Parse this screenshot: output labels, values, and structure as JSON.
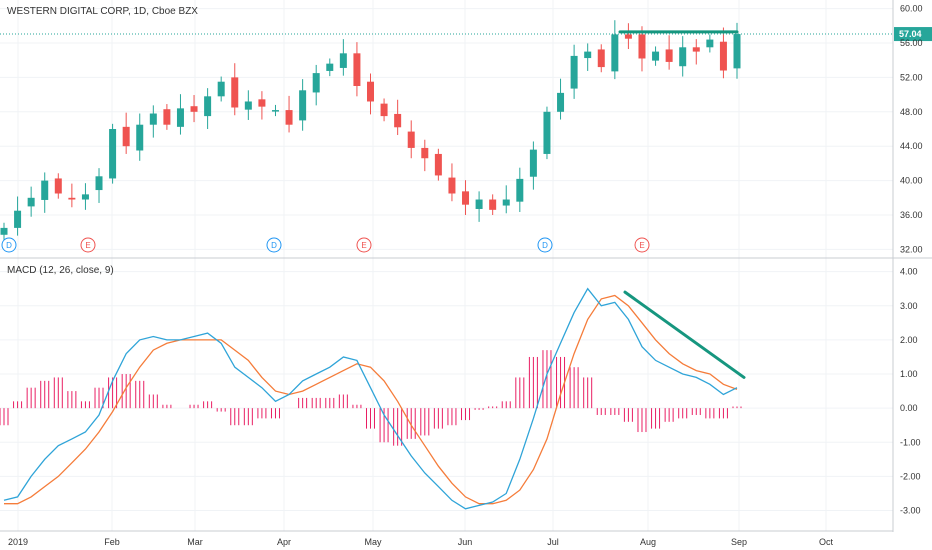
{
  "colors": {
    "up": "#26a69a",
    "down": "#ef5350",
    "macd_line": "#2fa4d8",
    "signal_line": "#f57c3a",
    "histogram": "#e91e63",
    "annotation": "#16967f",
    "grid": "#f0f3f6",
    "axis": "#c8ccd2",
    "dividend": "#2196f3",
    "earnings": "#ef5350"
  },
  "chart_data": [
    {
      "type": "candlestick",
      "title": "WESTERN DIGITAL CORP, 1D, Cboe BZX",
      "x_labels": [
        "2019",
        "Feb",
        "Mar",
        "Apr",
        "May",
        "Jun",
        "Jul",
        "Aug",
        "Sep",
        "Oct"
      ],
      "ylim": [
        31,
        61
      ],
      "y_ticks": [
        "32.00",
        "36.00",
        "40.00",
        "44.00",
        "48.00",
        "52.00",
        "56.00",
        "60.00"
      ],
      "last_price": "57.04",
      "last_price_value": 57.04,
      "events": [
        {
          "type": "dividend",
          "label": "D",
          "month": "Jan"
        },
        {
          "type": "earnings",
          "label": "E",
          "month": "Jan"
        },
        {
          "type": "dividend",
          "label": "D",
          "month": "Apr"
        },
        {
          "type": "earnings",
          "label": "E",
          "month": "Apr"
        },
        {
          "type": "dividend",
          "label": "D",
          "month": "Jul"
        },
        {
          "type": "earnings",
          "label": "E",
          "month": "Jul"
        }
      ],
      "annotation": {
        "type": "horizontal-resistance",
        "from": "late Jul",
        "to": "end Aug",
        "value": 57.3
      },
      "close_series": [
        34.5,
        36.5,
        38.0,
        40.0,
        38.5,
        37.8,
        38.4,
        40.5,
        46.0,
        44.0,
        46.5,
        47.8,
        46.5,
        48.4,
        48.0,
        49.8,
        51.5,
        48.5,
        49.2,
        48.6,
        48.2,
        46.5,
        50.5,
        52.5,
        53.6,
        54.8,
        51.0,
        49.2,
        47.5,
        46.2,
        43.8,
        42.6,
        40.6,
        38.5,
        37.2,
        37.8,
        36.6,
        37.8,
        40.2,
        43.6,
        48.0,
        50.2,
        54.5,
        55.0,
        53.2,
        57.0,
        56.5,
        54.2,
        55.0,
        53.8,
        55.5,
        55.0,
        56.4,
        52.8,
        57.04
      ]
    },
    {
      "type": "line",
      "title": "MACD (12, 26, close, 9)",
      "ylim": [
        -3.6,
        4.4
      ],
      "y_ticks": [
        "4.00",
        "3.00",
        "2.00",
        "1.00",
        "0.00",
        "-1.00",
        "-2.00",
        "-3.00"
      ],
      "series": [
        {
          "values": [
            -2.7,
            -2.6,
            -2.0,
            -1.5,
            -1.1,
            -0.9,
            -0.7,
            -0.2,
            0.8,
            1.6,
            2.0,
            2.1,
            2.0,
            2.0,
            2.1,
            2.2,
            1.9,
            1.2,
            0.9,
            0.6,
            0.2,
            0.4,
            0.8,
            1.0,
            1.2,
            1.5,
            1.4,
            0.6,
            -0.2,
            -0.8,
            -1.4,
            -1.9,
            -2.3,
            -2.7,
            -2.95,
            -2.85,
            -2.75,
            -2.5,
            -1.5,
            -0.3,
            1.0,
            1.9,
            2.8,
            3.5,
            3.0,
            3.1,
            2.6,
            1.8,
            1.4,
            1.2,
            1.0,
            0.9,
            0.7,
            0.4,
            0.6
          ]
        },
        {
          "values": [
            -2.8,
            -2.8,
            -2.6,
            -2.3,
            -2.0,
            -1.6,
            -1.2,
            -0.7,
            -0.1,
            0.6,
            1.2,
            1.7,
            1.9,
            2.0,
            2.0,
            2.0,
            2.0,
            1.7,
            1.4,
            0.9,
            0.5,
            0.4,
            0.5,
            0.7,
            0.9,
            1.1,
            1.3,
            1.2,
            0.8,
            0.2,
            -0.5,
            -1.1,
            -1.7,
            -2.2,
            -2.6,
            -2.8,
            -2.8,
            -2.7,
            -2.4,
            -1.8,
            -0.9,
            0.4,
            1.6,
            2.6,
            3.2,
            3.3,
            3.0,
            2.5,
            2.0,
            1.6,
            1.3,
            1.1,
            1.0,
            0.7,
            0.55
          ]
        },
        {
          "values": [
            -0.5,
            0.2,
            0.6,
            0.8,
            0.9,
            0.5,
            0.2,
            0.6,
            0.9,
            1.0,
            0.8,
            0.4,
            0.1,
            0.0,
            0.1,
            0.2,
            -0.1,
            -0.5,
            -0.5,
            -0.3,
            -0.3,
            0.0,
            0.3,
            0.3,
            0.3,
            0.4,
            0.1,
            -0.6,
            -1.0,
            -1.1,
            -0.9,
            -0.8,
            -0.6,
            -0.5,
            -0.35,
            -0.05,
            0.05,
            0.2,
            0.9,
            1.5,
            1.7,
            1.5,
            1.2,
            0.9,
            -0.2,
            -0.2,
            -0.4,
            -0.7,
            -0.6,
            -0.4,
            -0.3,
            -0.2,
            -0.3,
            -0.3,
            0.05
          ]
        }
      ],
      "annotation": {
        "type": "falling-trendline",
        "from": {
          "month": "late Jul",
          "value": 3.4
        },
        "to": {
          "month": "early Sep",
          "value": 0.9
        }
      }
    }
  ]
}
